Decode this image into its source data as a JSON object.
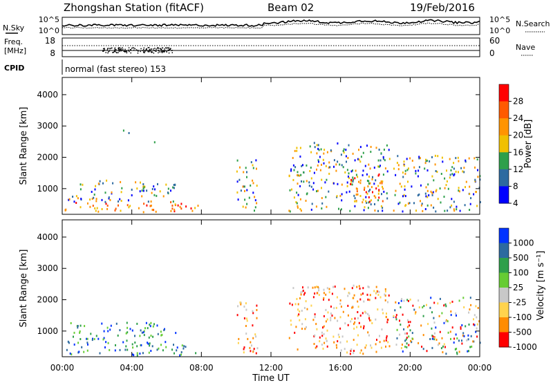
{
  "header": {
    "station": "Zhongshan Station (fitACF)",
    "beam": "Beam 02",
    "date": "19/Feb/2016"
  },
  "top_panels": {
    "noise": {
      "left_label": "N.Sky",
      "right_label": "N.Search",
      "left_ticks": [
        "10^5",
        "10^0"
      ],
      "right_ticks": [
        "10^5",
        "10^0"
      ]
    },
    "freq": {
      "left_label_1": "Freq.",
      "left_label_2": "[MHz]",
      "right_label": "Nave",
      "left_ticks": [
        "18",
        "8"
      ],
      "right_ticks": [
        "60",
        "0"
      ]
    },
    "cpid": {
      "left_label": "CPID",
      "text": "normal (fast stereo) 153"
    }
  },
  "chart_data": [
    {
      "type": "heatmap",
      "name": "power",
      "xlabel": "",
      "ylabel": "Slant Range [km]",
      "xlim": [
        "00:00",
        "24:00"
      ],
      "ylim": [
        180,
        4550
      ],
      "y_ticks": [
        "4000",
        "3000",
        "2000",
        "1000"
      ],
      "y_tick_values": [
        4000,
        3000,
        2000,
        1000
      ],
      "colorbar": {
        "label": "Power [dB]",
        "ticks": [
          "28",
          "24",
          "20",
          "16",
          "12",
          "8",
          "4"
        ],
        "colors": [
          "#ff0000",
          "#ff5a00",
          "#ff9400",
          "#f0c000",
          "#2e9f4a",
          "#2d6aa0",
          "#0000ff"
        ]
      },
      "echo_regions": [
        {
          "t_start": 0.1,
          "t_end": 7.8,
          "range_start": 250,
          "range_end": 600,
          "level": "high"
        },
        {
          "t_start": 0.3,
          "t_end": 6.5,
          "range_start": 600,
          "range_end": 1300,
          "level": "medium"
        },
        {
          "t_start": 2.8,
          "t_end": 6.0,
          "range_start": 2500,
          "range_end": 3300,
          "level": "sparse"
        },
        {
          "t_start": 10.0,
          "t_end": 11.2,
          "range_start": 300,
          "range_end": 2000,
          "level": "medium"
        },
        {
          "t_start": 13.0,
          "t_end": 18.8,
          "range_start": 300,
          "range_end": 2500,
          "level": "medium"
        },
        {
          "t_start": 16.5,
          "t_end": 18.5,
          "range_start": 600,
          "range_end": 1500,
          "level": "high"
        },
        {
          "t_start": 19.0,
          "t_end": 24.0,
          "range_start": 300,
          "range_end": 2100,
          "level": "medium"
        }
      ]
    },
    {
      "type": "heatmap",
      "name": "velocity",
      "xlabel": "Time UT",
      "ylabel": "Slant Range [km]",
      "xlim": [
        "00:00",
        "24:00"
      ],
      "ylim": [
        180,
        4550
      ],
      "x_ticks": [
        "00:00",
        "04:00",
        "08:00",
        "12:00",
        "16:00",
        "20:00",
        "00:00"
      ],
      "y_ticks": [
        "4000",
        "3000",
        "2000",
        "1000"
      ],
      "y_tick_values": [
        4000,
        3000,
        2000,
        1000
      ],
      "colorbar": {
        "label": "Velocity [m s⁻¹]",
        "ticks": [
          "1000",
          "500",
          "100",
          "25",
          "-25",
          "-100",
          "-500",
          "-1000"
        ],
        "colors": [
          "#0033ff",
          "#2d6aa0",
          "#2e9f4a",
          "#66cc33",
          "#c8c8c8",
          "#ffd34d",
          "#ff8c00",
          "#ff0000"
        ]
      },
      "echo_regions": [
        {
          "t_start": 0.1,
          "t_end": 7.8,
          "range_start": 250,
          "range_end": 600,
          "level": "positive"
        },
        {
          "t_start": 0.3,
          "t_end": 6.5,
          "range_start": 600,
          "range_end": 1300,
          "level": "positive"
        },
        {
          "t_start": 10.0,
          "t_end": 11.2,
          "range_start": 300,
          "range_end": 2000,
          "level": "negative"
        },
        {
          "t_start": 13.0,
          "t_end": 18.8,
          "range_start": 300,
          "range_end": 2500,
          "level": "negative"
        },
        {
          "t_start": 19.0,
          "t_end": 24.0,
          "range_start": 300,
          "range_end": 2100,
          "level": "mixed"
        }
      ]
    }
  ]
}
